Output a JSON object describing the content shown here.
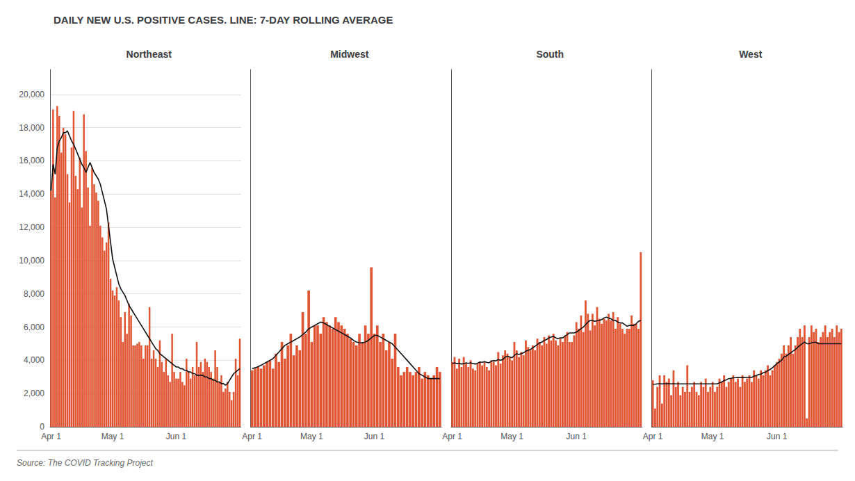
{
  "title": "DAILY NEW U.S. POSITIVE CASES. LINE: 7-DAY ROLLING AVERAGE",
  "annotations": [
    "Source: The COVID Tracking Project"
  ],
  "chart_data": [
    {
      "type": "bar",
      "title": "Northeast",
      "categories": [
        "Apr 1",
        null,
        null,
        null,
        null,
        null,
        null,
        null,
        null,
        null,
        null,
        null,
        null,
        null,
        null,
        null,
        null,
        null,
        null,
        null,
        null,
        null,
        null,
        null,
        null,
        null,
        null,
        null,
        null,
        null,
        "May 1",
        null,
        null,
        null,
        null,
        null,
        null,
        null,
        null,
        null,
        null,
        null,
        null,
        null,
        null,
        null,
        null,
        null,
        null,
        null,
        null,
        null,
        null,
        null,
        null,
        null,
        null,
        null,
        null,
        null,
        null,
        "Jun 1",
        null,
        null,
        null,
        null,
        null,
        null,
        null,
        null,
        null,
        null,
        null,
        null,
        null,
        null,
        null,
        null,
        null,
        null,
        null,
        null,
        null,
        null,
        null,
        null,
        null,
        null,
        null,
        null,
        null,
        null,
        null
      ],
      "series": [
        {
          "type": "bar",
          "color": "#e05533",
          "values": [
            14200,
            19100,
            13800,
            19300,
            18700,
            16500,
            18000,
            17600,
            15200,
            13500,
            16800,
            19000,
            15100,
            14300,
            16200,
            13200,
            18800,
            16600,
            14400,
            12100,
            15600,
            14600,
            14100,
            13600,
            12100,
            11400,
            10600,
            11100,
            12300,
            8900,
            8200,
            7900,
            8400,
            7600,
            6600,
            5100,
            6900,
            5600,
            7400,
            6700,
            4900,
            4900,
            5000,
            5100,
            4900,
            4100,
            4900,
            4900,
            7200,
            4100,
            4600,
            4100,
            3600,
            5200,
            3900,
            3300,
            4100,
            3100,
            2700,
            5600,
            3300,
            2900,
            2900,
            3300,
            2700,
            2500,
            4100,
            3300,
            2900,
            3600,
            3100,
            5100,
            3600,
            3900,
            3300,
            4100,
            3900,
            3600,
            3300,
            2900,
            4600,
            3600,
            2700,
            3100,
            2100,
            2300,
            2700,
            2100,
            1600,
            2100,
            4100,
            3100,
            5300
          ]
        },
        {
          "type": "line",
          "color": "#111111",
          "values": [
            14200,
            15800,
            15200,
            16800,
            17200,
            17400,
            17700,
            17700,
            17800,
            17500,
            17200,
            17000,
            16700,
            16400,
            16100,
            15800,
            15600,
            15300,
            15600,
            15900,
            15600,
            15300,
            15100,
            14900,
            14600,
            14100,
            13600,
            13100,
            12100,
            11100,
            10100,
            9600,
            9100,
            8600,
            8300,
            8100,
            7900,
            7600,
            7300,
            7100,
            6900,
            6700,
            6500,
            6300,
            6100,
            5900,
            5700,
            5500,
            5300,
            5100,
            4900,
            4700,
            4600,
            4400,
            4300,
            4200,
            4100,
            4000,
            3900,
            3800,
            3700,
            3600,
            3600,
            3500,
            3500,
            3400,
            3400,
            3300,
            3300,
            3200,
            3200,
            3100,
            3100,
            3100,
            3100,
            3000,
            3000,
            2900,
            2900,
            2800,
            2800,
            2700,
            2700,
            2600,
            2600,
            2500,
            2600,
            2800,
            3000,
            3200,
            3300,
            3400,
            3500
          ]
        }
      ],
      "ylim": [
        0,
        21500
      ],
      "yticks": [
        0,
        {
          "value": 2000,
          "label": "2,000"
        },
        {
          "value": 4000,
          "label": "4,000"
        },
        {
          "value": 6000,
          "label": "6,000"
        },
        {
          "value": 8000,
          "label": "8,000"
        },
        {
          "value": 10000,
          "label": "10,000"
        },
        {
          "value": 12000,
          "label": "12,000"
        },
        {
          "value": 14000,
          "label": "14,000"
        },
        {
          "value": 16000,
          "label": "16,000"
        },
        {
          "value": 18000,
          "label": "18,000"
        },
        {
          "value": 20000,
          "label": "20,000"
        }
      ],
      "grid": true
    },
    {
      "type": "bar",
      "title": "Midwest",
      "categories": [
        "Apr 1",
        null,
        null,
        null,
        null,
        null,
        null,
        null,
        null,
        null,
        null,
        null,
        null,
        null,
        null,
        null,
        null,
        null,
        null,
        null,
        "May 1",
        null,
        null,
        null,
        null,
        null,
        null,
        null,
        null,
        null,
        null,
        null,
        null,
        null,
        null,
        null,
        null,
        null,
        null,
        null,
        null,
        "Jun 1",
        null,
        null,
        null,
        null,
        null,
        null,
        null,
        null,
        null,
        null,
        null,
        null,
        null,
        null,
        null,
        null,
        null,
        null,
        null,
        null,
        null,
        null
      ],
      "series": [
        {
          "type": "bar",
          "color": "#e05533",
          "values": [
            3400,
            3500,
            3600,
            3500,
            3700,
            3900,
            4000,
            3500,
            4400,
            3900,
            5100,
            4100,
            4900,
            5600,
            4300,
            4900,
            4600,
            6900,
            5600,
            8200,
            5100,
            6100,
            6100,
            5600,
            6600,
            6300,
            6100,
            5900,
            6600,
            6300,
            6100,
            5900,
            5600,
            5300,
            5100,
            4900,
            5600,
            5100,
            6100,
            5600,
            9600,
            5600,
            6100,
            5100,
            5600,
            4600,
            5100,
            4100,
            5600,
            3600,
            3100,
            3300,
            3600,
            3300,
            3100,
            3300,
            3600,
            2900,
            3300,
            3100,
            2900,
            3100,
            3600,
            3300
          ]
        },
        {
          "type": "line",
          "color": "#111111",
          "values": [
            3500,
            3550,
            3620,
            3700,
            3800,
            3900,
            4000,
            4100,
            4300,
            4500,
            4700,
            4900,
            5000,
            5100,
            5200,
            5300,
            5400,
            5550,
            5700,
            5900,
            6000,
            6100,
            6200,
            6300,
            6250,
            6150,
            6050,
            5950,
            5850,
            5750,
            5650,
            5550,
            5450,
            5350,
            5200,
            5100,
            5050,
            5050,
            5100,
            5200,
            5350,
            5500,
            5500,
            5400,
            5300,
            5200,
            5100,
            5000,
            4800,
            4600,
            4400,
            4200,
            4000,
            3800,
            3600,
            3400,
            3200,
            3100,
            3000,
            2900,
            2900,
            2900,
            2900,
            2900
          ]
        }
      ],
      "ylim": [
        0,
        21500
      ],
      "grid": false,
      "tick_labels": "x"
    },
    {
      "type": "bar",
      "title": "South",
      "categories": [
        "Apr 1",
        null,
        null,
        null,
        null,
        null,
        null,
        null,
        null,
        null,
        null,
        null,
        null,
        null,
        null,
        null,
        null,
        null,
        null,
        null,
        null,
        null,
        null,
        null,
        null,
        null,
        "May 1",
        null,
        null,
        null,
        null,
        null,
        null,
        null,
        null,
        null,
        null,
        null,
        null,
        null,
        null,
        null,
        null,
        null,
        null,
        null,
        null,
        null,
        null,
        null,
        null,
        null,
        null,
        null,
        "Jun 1",
        null,
        null,
        null,
        null,
        null,
        null,
        null,
        null,
        null,
        null,
        null,
        null,
        null,
        null,
        null,
        null,
        null,
        null,
        null,
        null,
        null,
        null,
        null,
        null,
        null,
        null,
        null,
        null
      ],
      "series": [
        {
          "type": "bar",
          "color": "#e05533",
          "values": [
            3900,
            4200,
            3500,
            4100,
            3600,
            4200,
            3800,
            3600,
            4000,
            3500,
            3400,
            3800,
            3900,
            3700,
            3900,
            3600,
            3400,
            4000,
            3900,
            3700,
            4500,
            3800,
            4300,
            4600,
            4400,
            4200,
            4000,
            5100,
            4600,
            4200,
            4500,
            4300,
            5200,
            4800,
            4600,
            4900,
            4600,
            5300,
            5100,
            4900,
            5400,
            5000,
            5500,
            5200,
            5600,
            5200,
            4900,
            5300,
            5100,
            5500,
            5700,
            5100,
            5100,
            5500,
            6300,
            5900,
            6700,
            5700,
            7600,
            6800,
            5800,
            6800,
            6100,
            7200,
            6500,
            6200,
            6500,
            6400,
            6800,
            6400,
            6900,
            5900,
            6600,
            6200,
            5900,
            5600,
            5900,
            5900,
            6700,
            6200,
            6200,
            5900,
            10500
          ]
        },
        {
          "type": "line",
          "color": "#111111",
          "values": [
            3800,
            3850,
            3800,
            3820,
            3780,
            3800,
            3850,
            3820,
            3850,
            3800,
            3780,
            3820,
            3900,
            3880,
            3920,
            3880,
            3850,
            3950,
            3980,
            3970,
            4050,
            4000,
            4050,
            4200,
            4250,
            4200,
            4150,
            4300,
            4400,
            4350,
            4400,
            4450,
            4550,
            4600,
            4650,
            4750,
            4850,
            4950,
            5050,
            5100,
            5200,
            5250,
            5350,
            5400,
            5450,
            5350,
            5300,
            5350,
            5350,
            5450,
            5550,
            5650,
            5650,
            5650,
            5700,
            5800,
            5900,
            6000,
            6150,
            6300,
            6400,
            6400,
            6350,
            6380,
            6400,
            6450,
            6550,
            6600,
            6550,
            6500,
            6400,
            6400,
            6300,
            6250,
            6250,
            6150,
            6050,
            6100,
            6100,
            6100,
            6200,
            6350,
            6400
          ]
        }
      ],
      "ylim": [
        0,
        21500
      ],
      "grid": false,
      "tick_labels": "x"
    },
    {
      "type": "bar",
      "title": "West",
      "categories": [
        "Apr 1",
        null,
        null,
        null,
        null,
        null,
        null,
        null,
        null,
        null,
        null,
        null,
        null,
        null,
        null,
        null,
        null,
        null,
        null,
        null,
        null,
        null,
        null,
        null,
        null,
        null,
        "May 1",
        null,
        null,
        null,
        null,
        null,
        null,
        null,
        null,
        null,
        null,
        null,
        null,
        null,
        null,
        null,
        null,
        null,
        null,
        null,
        null,
        null,
        null,
        null,
        null,
        null,
        null,
        null,
        "Jun 1",
        null,
        null,
        null,
        null,
        null,
        null,
        null,
        null,
        null,
        null,
        null,
        null,
        null,
        null,
        null,
        null,
        null,
        null,
        null,
        null,
        null,
        null,
        null,
        null,
        null,
        null,
        null,
        null
      ],
      "series": [
        {
          "type": "bar",
          "color": "#e05533",
          "values": [
            2800,
            1100,
            2400,
            3100,
            1400,
            3100,
            2700,
            2900,
            1900,
            3400,
            2400,
            2700,
            1900,
            2400,
            2100,
            3700,
            2100,
            2400,
            2700,
            2100,
            1900,
            2700,
            2400,
            2900,
            2100,
            2400,
            2700,
            2100,
            2400,
            2900,
            2700,
            3100,
            2400,
            2700,
            2900,
            3100,
            2700,
            2900,
            2400,
            3100,
            2700,
            2900,
            3100,
            2700,
            3400,
            3100,
            2900,
            3400,
            3100,
            3400,
            3700,
            3100,
            3400,
            3700,
            3900,
            4100,
            4400,
            4900,
            4400,
            4900,
            5400,
            4400,
            4900,
            5400,
            5900,
            5400,
            6100,
            500,
            5400,
            6100,
            5700,
            5900,
            5100,
            5400,
            5700,
            6100,
            5400,
            5700,
            5900,
            5400,
            6100,
            5700,
            5900
          ]
        },
        {
          "type": "line",
          "color": "#111111",
          "values": [
            2550,
            2560,
            2580,
            2590,
            2580,
            2590,
            2590,
            2590,
            2580,
            2590,
            2580,
            2580,
            2580,
            2580,
            2580,
            2580,
            2580,
            2580,
            2580,
            2580,
            2580,
            2580,
            2580,
            2580,
            2580,
            2580,
            2580,
            2580,
            2580,
            2650,
            2700,
            2780,
            2820,
            2900,
            2920,
            2950,
            2960,
            2970,
            2960,
            2970,
            2960,
            2970,
            2970,
            2970,
            3050,
            3080,
            3150,
            3170,
            3250,
            3280,
            3380,
            3450,
            3550,
            3680,
            3800,
            3900,
            4000,
            4200,
            4250,
            4350,
            4450,
            4550,
            4650,
            4780,
            4900,
            5000,
            5100,
            5000,
            5000,
            5050,
            5080,
            5080,
            5000,
            5000,
            5000,
            5000,
            5000,
            5000,
            5000,
            5000,
            5000,
            5000,
            5000
          ]
        }
      ],
      "ylim": [
        0,
        21500
      ],
      "grid": false,
      "tick_labels": "x"
    }
  ]
}
